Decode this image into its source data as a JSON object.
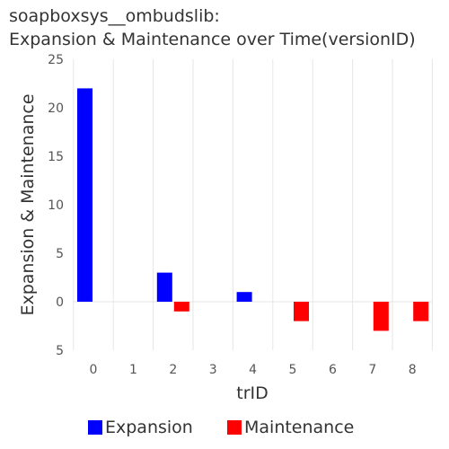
{
  "chart_data": {
    "type": "bar",
    "title_line1": "soapboxsys__ombudslib:",
    "title_line2": "Expansion & Maintenance over Time(versionID)",
    "xlabel": "trID",
    "ylabel": "Expansion & Maintenance",
    "categories": [
      "0",
      "1",
      "2",
      "3",
      "4",
      "5",
      "6",
      "7",
      "8"
    ],
    "series": [
      {
        "name": "Expansion",
        "color": "#0000ff",
        "values": [
          22,
          0,
          3,
          0,
          1,
          0,
          0,
          0,
          0
        ]
      },
      {
        "name": "Maintenance",
        "color": "#ff0000",
        "values": [
          0,
          0,
          -1,
          0,
          0,
          -2,
          0,
          -3,
          -2
        ]
      }
    ],
    "ylim": [
      -5,
      25
    ],
    "yticks": [
      -5,
      0,
      5,
      10,
      15,
      20,
      25
    ],
    "ytick_labels": [
      "5",
      "0",
      "5",
      "10",
      "15",
      "20",
      "25"
    ],
    "legend_position": "bottom"
  }
}
